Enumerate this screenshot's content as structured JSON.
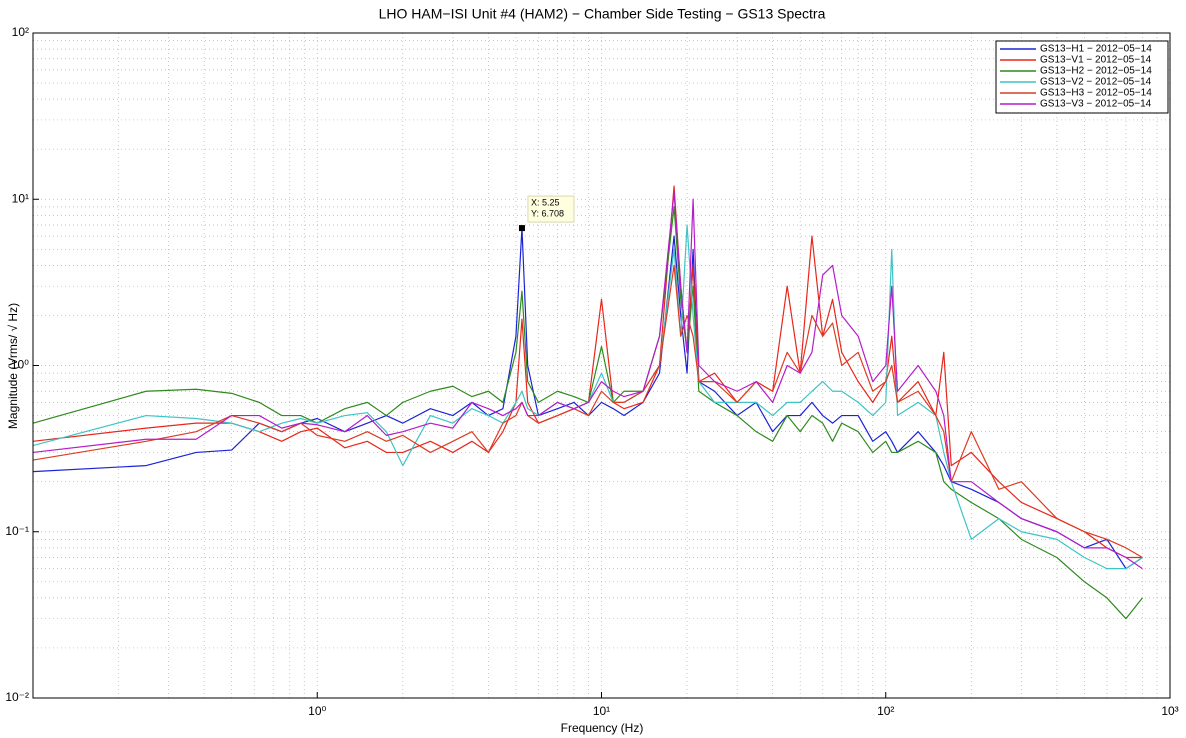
{
  "chart_data": {
    "type": "line",
    "title": "LHO HAM−ISI Unit #4 (HAM2) − Chamber Side Testing − GS13 Spectra",
    "xlabel": "Frequency (Hz)",
    "ylabel": "Magnitude (Vrms/ √ Hz)",
    "xscale": "log",
    "yscale": "log",
    "grid": true,
    "minor_grid": true,
    "legend": "upper right",
    "xlim": [
      0.1,
      1000
    ],
    "ylim": [
      0.01,
      100
    ],
    "xticks": [
      {
        "value": 1,
        "label": "10⁰"
      },
      {
        "value": 10,
        "label": "10¹"
      },
      {
        "value": 100,
        "label": "10²"
      },
      {
        "value": 1000,
        "label": "10³"
      }
    ],
    "yticks": [
      {
        "value": 0.01,
        "label": "10⁻²"
      },
      {
        "value": 0.1,
        "label": "10⁻¹"
      },
      {
        "value": 1,
        "label": "10⁰"
      },
      {
        "value": 10,
        "label": "10¹"
      },
      {
        "value": 100,
        "label": "10²"
      }
    ],
    "xminorticks": [
      0.2,
      0.3,
      0.4,
      0.5,
      0.6,
      0.7,
      0.8,
      0.9,
      2,
      3,
      4,
      5,
      6,
      7,
      8,
      9,
      20,
      30,
      40,
      50,
      60,
      70,
      80,
      90,
      200,
      300,
      400,
      500,
      600,
      700,
      800,
      900
    ],
    "yminorticks": [
      0.02,
      0.03,
      0.04,
      0.05,
      0.06,
      0.07,
      0.08,
      0.09,
      0.2,
      0.3,
      0.4,
      0.5,
      0.6,
      0.7,
      0.8,
      0.9,
      2,
      3,
      4,
      5,
      6,
      7,
      8,
      9,
      20,
      30,
      40,
      50,
      60,
      70,
      80,
      90
    ],
    "x": [
      0.1,
      0.25,
      0.375,
      0.5,
      0.625,
      0.75,
      0.875,
      1,
      1.25,
      1.5,
      1.75,
      2,
      2.5,
      3,
      3.5,
      4,
      4.5,
      5,
      5.25,
      5.5,
      6,
      7,
      8,
      9,
      10,
      11,
      12,
      14,
      16,
      18,
      19,
      20,
      21,
      22,
      25,
      30,
      35,
      40,
      45,
      50,
      55,
      60,
      65,
      70,
      80,
      90,
      100,
      105,
      110,
      130,
      150,
      160,
      170,
      200,
      250,
      300,
      400,
      500,
      600,
      700,
      800
    ],
    "series": [
      {
        "name": "GS13−H1 − 2012−05−14",
        "color": "#1c23d6",
        "values": [
          0.23,
          0.25,
          0.3,
          0.31,
          0.45,
          0.4,
          0.45,
          0.48,
          0.4,
          0.45,
          0.5,
          0.45,
          0.55,
          0.5,
          0.6,
          0.5,
          0.55,
          1.5,
          6.708,
          1.0,
          0.5,
          0.55,
          0.6,
          0.5,
          0.6,
          0.55,
          0.5,
          0.6,
          0.9,
          6,
          2,
          0.9,
          5,
          0.8,
          0.7,
          0.5,
          0.6,
          0.4,
          0.5,
          0.5,
          0.6,
          0.5,
          0.45,
          0.5,
          0.5,
          0.35,
          0.4,
          0.35,
          0.3,
          0.4,
          0.3,
          0.25,
          0.2,
          0.18,
          0.15,
          0.12,
          0.1,
          0.08,
          0.09,
          0.06,
          0.07
        ]
      },
      {
        "name": "GS13−V1 − 2012−05−14",
        "color": "#e8261b",
        "values": [
          0.35,
          0.42,
          0.45,
          0.45,
          0.4,
          0.35,
          0.4,
          0.42,
          0.32,
          0.35,
          0.3,
          0.3,
          0.35,
          0.3,
          0.35,
          0.3,
          0.4,
          0.6,
          1.9,
          0.6,
          0.45,
          0.5,
          0.55,
          0.6,
          2.5,
          0.6,
          0.55,
          0.6,
          1.0,
          12,
          3,
          1.2,
          4,
          0.8,
          0.9,
          0.6,
          0.8,
          0.7,
          3,
          0.9,
          6,
          1.5,
          2.5,
          1.2,
          0.8,
          0.6,
          0.8,
          1.5,
          0.6,
          0.8,
          0.5,
          1.2,
          0.25,
          0.3,
          0.2,
          0.15,
          0.12,
          0.1,
          0.08,
          0.07,
          0.07
        ]
      },
      {
        "name": "GS13−H2 − 2012−05−14",
        "color": "#2e8b1c",
        "values": [
          0.45,
          0.7,
          0.72,
          0.68,
          0.6,
          0.5,
          0.5,
          0.45,
          0.55,
          0.6,
          0.5,
          0.6,
          0.7,
          0.75,
          0.65,
          0.7,
          0.6,
          1.2,
          2.8,
          0.8,
          0.6,
          0.7,
          0.65,
          0.6,
          1.3,
          0.6,
          0.7,
          0.7,
          1.5,
          9,
          2.5,
          1.2,
          3,
          0.7,
          0.6,
          0.5,
          0.4,
          0.35,
          0.5,
          0.4,
          0.5,
          0.45,
          0.35,
          0.45,
          0.4,
          0.3,
          0.35,
          0.3,
          0.3,
          0.35,
          0.3,
          0.2,
          0.18,
          0.15,
          0.12,
          0.09,
          0.07,
          0.05,
          0.04,
          0.03,
          0.04
        ]
      },
      {
        "name": "GS13−V2 − 2012−05−14",
        "color": "#3ec4c4",
        "values": [
          0.33,
          0.5,
          0.48,
          0.45,
          0.4,
          0.45,
          0.48,
          0.45,
          0.5,
          0.52,
          0.4,
          0.25,
          0.5,
          0.45,
          0.55,
          0.5,
          0.45,
          0.6,
          0.7,
          0.55,
          0.5,
          0.6,
          0.55,
          0.6,
          0.9,
          0.6,
          0.6,
          0.7,
          1.0,
          5,
          1.5,
          7,
          2,
          0.8,
          0.6,
          0.6,
          0.6,
          0.5,
          0.6,
          0.6,
          0.7,
          0.8,
          0.7,
          0.7,
          0.6,
          0.5,
          0.6,
          5,
          0.5,
          0.6,
          0.5,
          0.3,
          0.2,
          0.09,
          0.12,
          0.1,
          0.09,
          0.07,
          0.06,
          0.06,
          0.07
        ]
      },
      {
        "name": "GS13−H3 − 2012−05−14",
        "color": "#dc3c22",
        "values": [
          0.27,
          0.35,
          0.4,
          0.5,
          0.45,
          0.4,
          0.45,
          0.38,
          0.35,
          0.4,
          0.35,
          0.38,
          0.3,
          0.35,
          0.4,
          0.3,
          0.45,
          0.5,
          0.6,
          0.5,
          0.45,
          0.5,
          0.55,
          0.5,
          0.7,
          0.6,
          0.6,
          0.7,
          1.0,
          4,
          1.5,
          2,
          1.5,
          0.8,
          0.8,
          0.6,
          0.8,
          0.7,
          1.2,
          0.9,
          2,
          1.5,
          1.8,
          1.0,
          1.2,
          0.7,
          0.8,
          1.0,
          0.6,
          0.7,
          0.5,
          0.4,
          0.2,
          0.4,
          0.18,
          0.2,
          0.12,
          0.1,
          0.09,
          0.08,
          0.07
        ]
      },
      {
        "name": "GS13−V3 − 2012−05−14",
        "color": "#b61cc8",
        "values": [
          0.3,
          0.36,
          0.36,
          0.5,
          0.5,
          0.42,
          0.45,
          0.44,
          0.4,
          0.5,
          0.38,
          0.4,
          0.45,
          0.42,
          0.6,
          0.55,
          0.5,
          0.55,
          0.6,
          0.5,
          0.5,
          0.6,
          0.55,
          0.6,
          0.8,
          0.7,
          0.65,
          0.7,
          1.5,
          11,
          3,
          1.2,
          10,
          1.0,
          0.8,
          0.7,
          0.8,
          0.6,
          1.0,
          0.9,
          1.2,
          3.5,
          4,
          2,
          1.5,
          0.8,
          1.0,
          3,
          0.7,
          1.0,
          0.7,
          0.5,
          0.2,
          0.2,
          0.15,
          0.12,
          0.1,
          0.08,
          0.08,
          0.07,
          0.06
        ]
      }
    ],
    "annotations": [
      {
        "x": 5.25,
        "y": 6.708,
        "text": [
          "X: 5.25",
          "Y: 6.708"
        ]
      }
    ]
  }
}
